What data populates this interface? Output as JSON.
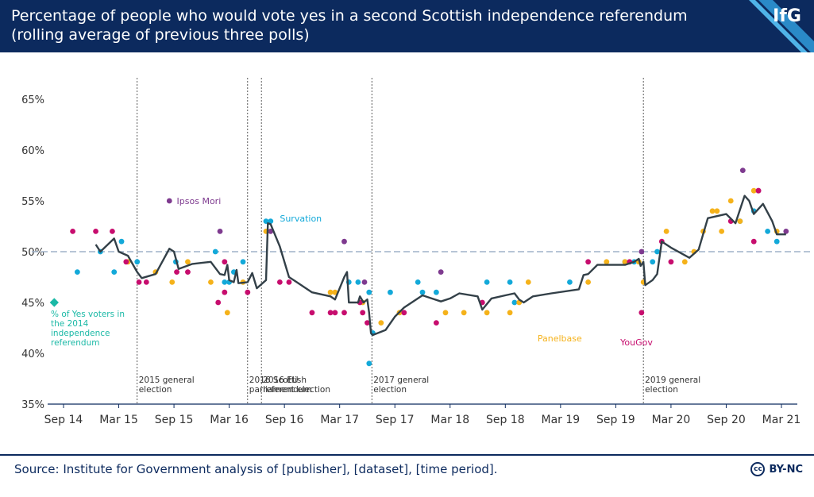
{
  "header": {
    "title_line1": "Percentage of people who would vote yes in a second Scottish independence referendum",
    "title_line2": "(rolling average of previous three polls)",
    "logo": "IfG"
  },
  "footer": {
    "source": "Source: Institute for Government analysis of [publisher], [dataset], [time period].",
    "license": "BY-NC",
    "cc": "cc"
  },
  "colors": {
    "navy": "#0c2a5e",
    "line": "#334048",
    "survation": "#13a9d9",
    "ipsos": "#7e3a8f",
    "panelbase": "#f5b21a",
    "yougov": "#c70d6e",
    "yes2014": "#1bb9a6",
    "ref50": "#9fb2c8",
    "axis": "#0c2a5e"
  },
  "chart_data": {
    "type": "line",
    "title": "Percentage of people who would vote yes in a second Scottish independence referendum",
    "subtitle": "(rolling average of previous three polls)",
    "xlabel": "",
    "ylabel": "",
    "x_unit": "months since Sep 2014",
    "xlim": [
      0,
      78
    ],
    "ylim": [
      35,
      65
    ],
    "yticks": [
      35,
      40,
      45,
      50,
      55,
      60,
      65
    ],
    "ytick_labels": [
      "35%",
      "40%",
      "45%",
      "50%",
      "55%",
      "60%",
      "65%"
    ],
    "xticks": [
      0,
      6,
      12,
      18,
      24,
      30,
      36,
      42,
      48,
      54,
      60,
      66,
      72,
      78
    ],
    "xtick_labels": [
      "Sep 14",
      "Mar 15",
      "Sep 15",
      "Mar 16",
      "Sep 16",
      "Mar 17",
      "Sep 17",
      "Mar 18",
      "Sep 18",
      "Mar 19",
      "Sep 19",
      "Mar 20",
      "Sep 20",
      "Mar 21"
    ],
    "reference_line": {
      "y": 50
    },
    "events": [
      {
        "x": 8,
        "label_line1": "2015 general",
        "label_line2": "election"
      },
      {
        "x": 20,
        "label_line1": "2016 Scottish",
        "label_line2": "parliament election"
      },
      {
        "x": 21.5,
        "label_line1": "2016 EU",
        "label_line2": "referendum"
      },
      {
        "x": 33.5,
        "label_line1": "2017 general",
        "label_line2": "election"
      },
      {
        "x": 63,
        "label_line1": "2019 general",
        "label_line2": "election"
      }
    ],
    "yes2014": {
      "x": 0.2,
      "y": 45,
      "label_lines": [
        "% of Yes voters in",
        "the 2014",
        "independence",
        "referendum"
      ]
    },
    "series": [
      {
        "name": "Rolling average",
        "type": "line",
        "points": [
          [
            3.5,
            50.7
          ],
          [
            4,
            50
          ],
          [
            5.5,
            51.3
          ],
          [
            6,
            50
          ],
          [
            7,
            49.6
          ],
          [
            8,
            48
          ],
          [
            8.5,
            47.4
          ],
          [
            10,
            47.8
          ],
          [
            11.5,
            50.3
          ],
          [
            12,
            50
          ],
          [
            12.5,
            48.3
          ],
          [
            14,
            48.8
          ],
          [
            16,
            49
          ],
          [
            17,
            47.8
          ],
          [
            17.5,
            47.7
          ],
          [
            17.8,
            48.7
          ],
          [
            18,
            47.2
          ],
          [
            18.5,
            47
          ],
          [
            18.8,
            48.2
          ],
          [
            19,
            46.9
          ],
          [
            20,
            47
          ],
          [
            20.5,
            47.9
          ],
          [
            21,
            46.4
          ],
          [
            22,
            47.2
          ],
          [
            22.2,
            52.8
          ],
          [
            22.5,
            52.7
          ],
          [
            23.5,
            50.5
          ],
          [
            24.5,
            47.5
          ],
          [
            25,
            47.2
          ],
          [
            27,
            46
          ],
          [
            29,
            45.6
          ],
          [
            29.5,
            45.3
          ],
          [
            30.5,
            47.5
          ],
          [
            30.8,
            48
          ],
          [
            31,
            45
          ],
          [
            32,
            45
          ],
          [
            32.2,
            45.6
          ],
          [
            32.6,
            45
          ],
          [
            33,
            45.3
          ],
          [
            33.2,
            44
          ],
          [
            33.4,
            42
          ],
          [
            33.6,
            41.8
          ],
          [
            35,
            42.3
          ],
          [
            36,
            43.6
          ],
          [
            37,
            44.5
          ],
          [
            39,
            45.7
          ],
          [
            40,
            45.4
          ],
          [
            41,
            45.1
          ],
          [
            42,
            45.4
          ],
          [
            43,
            45.9
          ],
          [
            45,
            45.6
          ],
          [
            45.5,
            44.3
          ],
          [
            46.5,
            45.4
          ],
          [
            48,
            45.7
          ],
          [
            49,
            45.9
          ],
          [
            49.5,
            45.3
          ],
          [
            50,
            45
          ],
          [
            51,
            45.6
          ],
          [
            53,
            45.9
          ],
          [
            56,
            46.3
          ],
          [
            56.5,
            47.7
          ],
          [
            57,
            47.8
          ],
          [
            58,
            48.7
          ],
          [
            60,
            48.7
          ],
          [
            61,
            48.7
          ],
          [
            62,
            49
          ],
          [
            62.5,
            49.3
          ],
          [
            62.7,
            48.6
          ],
          [
            63,
            49
          ],
          [
            63.2,
            46.7
          ],
          [
            64,
            47.2
          ],
          [
            64.5,
            47.8
          ],
          [
            65,
            51
          ],
          [
            66,
            50.4
          ],
          [
            68,
            49.4
          ],
          [
            69,
            50.2
          ],
          [
            70,
            53.3
          ],
          [
            72,
            53.7
          ],
          [
            73,
            52.8
          ],
          [
            74,
            55.5
          ],
          [
            74.5,
            55
          ],
          [
            75,
            53.7
          ],
          [
            76,
            54.7
          ],
          [
            77,
            53
          ],
          [
            77.5,
            51.7
          ],
          [
            78.5,
            51.7
          ]
        ]
      },
      {
        "name": "Survation",
        "type": "scatter",
        "color": "#13a9d9",
        "label": "Survation",
        "points": [
          [
            1.5,
            48
          ],
          [
            4,
            50
          ],
          [
            5.5,
            48
          ],
          [
            6.3,
            51
          ],
          [
            8,
            49
          ],
          [
            12.2,
            49
          ],
          [
            16.5,
            50
          ],
          [
            17.5,
            47
          ],
          [
            18,
            47
          ],
          [
            18.5,
            48
          ],
          [
            19.5,
            49
          ],
          [
            22,
            53
          ],
          [
            22.5,
            53
          ],
          [
            31,
            47
          ],
          [
            32,
            47
          ],
          [
            33.2,
            46
          ],
          [
            33.2,
            39
          ],
          [
            33.6,
            42
          ],
          [
            35.5,
            46
          ],
          [
            38.5,
            47
          ],
          [
            39,
            46
          ],
          [
            40.5,
            46
          ],
          [
            46,
            47
          ],
          [
            48.5,
            47
          ],
          [
            49,
            45
          ],
          [
            55,
            47
          ],
          [
            61,
            49
          ],
          [
            62,
            49
          ],
          [
            64,
            49
          ],
          [
            64.5,
            50
          ],
          [
            73.5,
            53
          ],
          [
            75,
            54
          ],
          [
            76.5,
            52
          ],
          [
            77.5,
            51
          ]
        ]
      },
      {
        "name": "Ipsos Mori",
        "type": "scatter",
        "color": "#7e3a8f",
        "label": "Ipsos Mori",
        "points": [
          [
            11.5,
            55
          ],
          [
            17,
            52
          ],
          [
            22.5,
            52
          ],
          [
            30.5,
            51
          ],
          [
            32.7,
            47
          ],
          [
            41,
            48
          ],
          [
            62.8,
            50
          ],
          [
            73.8,
            58
          ],
          [
            75.5,
            56
          ],
          [
            78.5,
            52
          ]
        ]
      },
      {
        "name": "Panelbase",
        "type": "scatter",
        "color": "#f5b21a",
        "label": "Panelbase",
        "points": [
          [
            7,
            49
          ],
          [
            10,
            48
          ],
          [
            11.8,
            47
          ],
          [
            13.5,
            49
          ],
          [
            16,
            47
          ],
          [
            17.8,
            44
          ],
          [
            19.5,
            47
          ],
          [
            22,
            52
          ],
          [
            29,
            46
          ],
          [
            29.5,
            46
          ],
          [
            32.5,
            45
          ],
          [
            34.5,
            43
          ],
          [
            36.5,
            44
          ],
          [
            41.5,
            44
          ],
          [
            43.5,
            44
          ],
          [
            46,
            44
          ],
          [
            48.5,
            44
          ],
          [
            49.5,
            45
          ],
          [
            50.5,
            47
          ],
          [
            57,
            47
          ],
          [
            59,
            49
          ],
          [
            61,
            49
          ],
          [
            62.5,
            49
          ],
          [
            63,
            47
          ],
          [
            65.5,
            52
          ],
          [
            67.5,
            49
          ],
          [
            68.5,
            50
          ],
          [
            69.5,
            52
          ],
          [
            70.5,
            54
          ],
          [
            71,
            54
          ],
          [
            71.5,
            52
          ],
          [
            72.5,
            55
          ],
          [
            73.5,
            53
          ],
          [
            75,
            56
          ],
          [
            77.5,
            52
          ]
        ]
      },
      {
        "name": "YouGov",
        "type": "scatter",
        "color": "#c70d6e",
        "label": "YouGov",
        "points": [
          [
            1,
            52
          ],
          [
            3.5,
            52
          ],
          [
            5.3,
            52
          ],
          [
            6.8,
            49
          ],
          [
            8.2,
            47
          ],
          [
            9,
            47
          ],
          [
            12.3,
            48
          ],
          [
            13.5,
            48
          ],
          [
            16.8,
            45
          ],
          [
            17.5,
            46
          ],
          [
            17.5,
            49
          ],
          [
            20,
            46
          ],
          [
            23.5,
            47
          ],
          [
            24.5,
            47
          ],
          [
            27,
            44
          ],
          [
            29,
            44
          ],
          [
            29.5,
            44
          ],
          [
            30.5,
            44
          ],
          [
            32.2,
            45
          ],
          [
            32.5,
            44
          ],
          [
            33,
            43
          ],
          [
            37,
            44
          ],
          [
            40.5,
            43
          ],
          [
            45.5,
            45
          ],
          [
            57,
            49
          ],
          [
            61.5,
            49
          ],
          [
            62.8,
            44
          ],
          [
            65,
            51
          ],
          [
            66,
            49
          ],
          [
            72.5,
            53
          ],
          [
            75,
            51
          ],
          [
            75.5,
            56
          ]
        ]
      }
    ]
  }
}
